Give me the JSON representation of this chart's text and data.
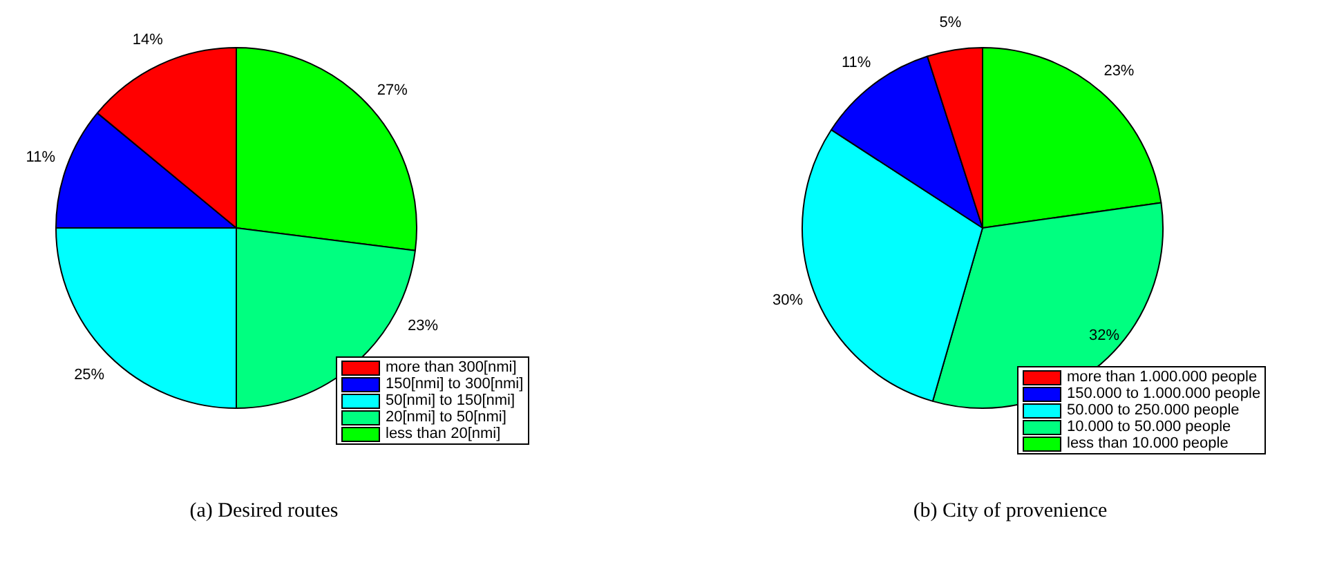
{
  "chart_data": [
    {
      "type": "pie",
      "title": "(a) Desired routes",
      "categories": [
        "more than 300[nmi]",
        "150[nmi] to 300[nmi]",
        "50[nmi] to 150[nmi]",
        "20[nmi] to 50[nmi]",
        "less than 20[nmi]"
      ],
      "values": [
        14,
        11,
        25,
        23,
        27
      ],
      "colors": [
        "#ff0000",
        "#0000ff",
        "#00ffff",
        "#00ff80",
        "#00ff00"
      ],
      "value_labels": [
        "14%",
        "11%",
        "25%",
        "23%",
        "27%"
      ],
      "legend": "bottom right"
    },
    {
      "type": "pie",
      "title": "(b) City of provenience",
      "categories": [
        "more than 1.000.000 people",
        "150.000 to 1.000.000 people",
        "50.000 to 250.000 people",
        "10.000 to 50.000 people",
        "less than 10.000 people"
      ],
      "values": [
        5,
        11,
        30,
        32,
        23
      ],
      "colors": [
        "#ff0000",
        "#0000ff",
        "#00ffff",
        "#00ff80",
        "#00ff00"
      ],
      "value_labels": [
        "5%",
        "11%",
        "30%",
        "32%",
        "23%"
      ],
      "legend": "bottom right"
    }
  ]
}
